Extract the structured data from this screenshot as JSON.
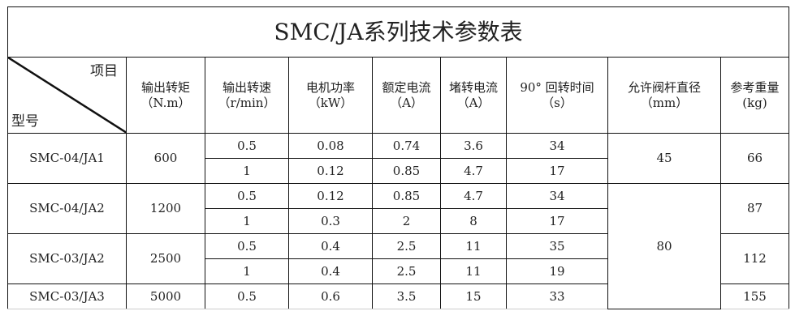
{
  "title": "SMC/JA系列技术参数表",
  "header": {
    "corner_top": "项目",
    "corner_bottom": "型号",
    "columns": [
      {
        "label": "输出转矩",
        "unit": "（N.m）"
      },
      {
        "label": "输出转速",
        "unit": "（r/min）"
      },
      {
        "label": "电机功率",
        "unit": "（kW）"
      },
      {
        "label": "额定电流",
        "unit": "（A）"
      },
      {
        "label": "堵转电流",
        "unit": "（A）"
      },
      {
        "label": "90° 回转时间",
        "unit": "（s）"
      },
      {
        "label": "允许阀杆直径",
        "unit": "（mm）"
      },
      {
        "label": "参考重量",
        "unit": "(kg)"
      }
    ]
  },
  "models": [
    {
      "model": "SMC-04/JA1",
      "torque": "600",
      "stem": "45",
      "weight": "66",
      "rows": [
        {
          "speed": "0.5",
          "power": "0.08",
          "rated": "0.74",
          "stall": "3.6",
          "time": "34"
        },
        {
          "speed": "1",
          "power": "0.12",
          "rated": "0.85",
          "stall": "4.7",
          "time": "17"
        }
      ]
    },
    {
      "model": "SMC-04/JA2",
      "torque": "1200",
      "weight": "87",
      "rows": [
        {
          "speed": "0.5",
          "power": "0.12",
          "rated": "0.85",
          "stall": "4.7",
          "time": "34"
        },
        {
          "speed": "1",
          "power": "0.3",
          "rated": "2",
          "stall": "8",
          "time": "17"
        }
      ]
    },
    {
      "model": "SMC-03/JA2",
      "torque": "2500",
      "weight": "112",
      "rows": [
        {
          "speed": "0.5",
          "power": "0.4",
          "rated": "2.5",
          "stall": "11",
          "time": "35"
        },
        {
          "speed": "1",
          "power": "0.4",
          "rated": "2.5",
          "stall": "11",
          "time": "19"
        }
      ]
    },
    {
      "model": "SMC-03/JA3",
      "torque": "5000",
      "weight": "155",
      "rows": [
        {
          "speed": "0.5",
          "power": "0.6",
          "rated": "3.5",
          "stall": "15",
          "time": "33"
        }
      ]
    }
  ],
  "stem_shared": "80"
}
